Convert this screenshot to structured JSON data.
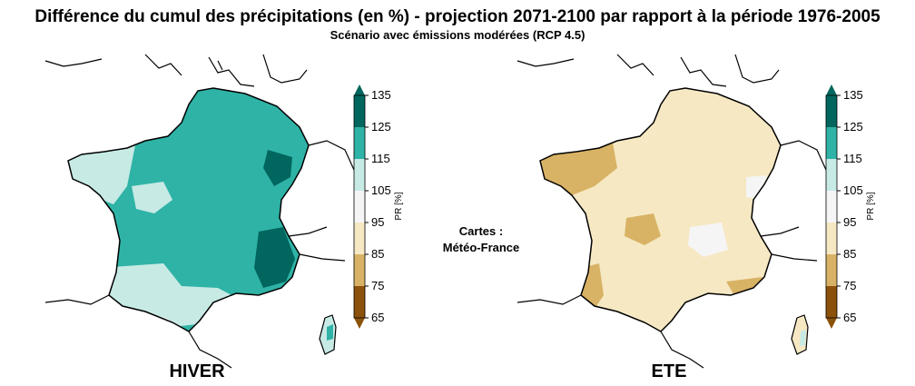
{
  "title": "Différence du cumul des précipitations (en %) - projection 2071-2100 par rapport à la période 1976-2005",
  "subtitle": "Scénario avec émissions modérées (RCP 4.5)",
  "credit": [
    "Cartes :",
    "Météo-France"
  ],
  "colorbar": {
    "unit": "PR [%]",
    "ticks": [
      "65",
      "75",
      "85",
      "95",
      "105",
      "115",
      "125",
      "135"
    ],
    "bins": [
      {
        "range": [
          65,
          75
        ],
        "color": "#8c510a"
      },
      {
        "range": [
          75,
          85
        ],
        "color": "#d8b365"
      },
      {
        "range": [
          85,
          95
        ],
        "color": "#f6e8c3"
      },
      {
        "range": [
          95,
          105
        ],
        "color": "#f5f5f5"
      },
      {
        "range": [
          105,
          115
        ],
        "color": "#c7eae5"
      },
      {
        "range": [
          115,
          125
        ],
        "color": "#2fb3a6"
      },
      {
        "range": [
          125,
          135
        ],
        "color": "#01665e"
      }
    ],
    "extend_low_color": "#8c510a",
    "extend_high_color": "#01665e"
  },
  "panels": [
    {
      "id": "hiver",
      "label": "HIVER",
      "base_color": "#2fb3a6",
      "zones": [
        {
          "name": "west-coast",
          "color": "#c7eae5"
        },
        {
          "name": "south-west",
          "color": "#c7eae5"
        },
        {
          "name": "central-pale",
          "color": "#c7eae5"
        },
        {
          "name": "alps-dark",
          "color": "#01665e"
        },
        {
          "name": "north-east-dark",
          "color": "#01665e"
        },
        {
          "name": "pyrenees-light",
          "color": "#f5f5f5"
        }
      ]
    },
    {
      "id": "ete",
      "label": "ETE",
      "base_color": "#f6e8c3",
      "zones": [
        {
          "name": "brittany-dry",
          "color": "#d8b365"
        },
        {
          "name": "aquitaine-dry",
          "color": "#d8b365"
        },
        {
          "name": "central-dry",
          "color": "#d8b365"
        },
        {
          "name": "alps-neutral",
          "color": "#f5f5f5"
        },
        {
          "name": "provence-dry",
          "color": "#d8b365"
        },
        {
          "name": "east-neutral",
          "color": "#f5f5f5"
        }
      ]
    }
  ]
}
